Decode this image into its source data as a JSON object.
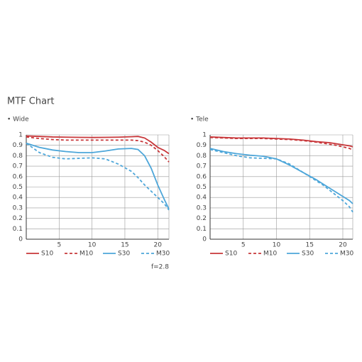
{
  "title": "MTF Chart",
  "chart_data": [
    {
      "type": "line",
      "subtitle": "• Wide",
      "x": [
        0,
        2,
        4,
        6,
        8,
        10,
        12,
        14,
        16,
        17,
        18,
        19,
        20,
        21,
        21.7
      ],
      "series": [
        {
          "name": "S10",
          "color": "#c8373a",
          "dash": false,
          "values": [
            0.99,
            0.985,
            0.98,
            0.978,
            0.976,
            0.975,
            0.976,
            0.978,
            0.982,
            0.985,
            0.97,
            0.93,
            0.88,
            0.85,
            0.82
          ]
        },
        {
          "name": "M10",
          "color": "#c8373a",
          "dash": true,
          "values": [
            0.98,
            0.965,
            0.955,
            0.95,
            0.95,
            0.95,
            0.95,
            0.95,
            0.95,
            0.945,
            0.93,
            0.9,
            0.85,
            0.79,
            0.74
          ]
        },
        {
          "name": "S30",
          "color": "#4da6d9",
          "dash": false,
          "values": [
            0.92,
            0.88,
            0.855,
            0.84,
            0.83,
            0.83,
            0.845,
            0.865,
            0.87,
            0.86,
            0.8,
            0.68,
            0.52,
            0.38,
            0.29
          ]
        },
        {
          "name": "M30",
          "color": "#4da6d9",
          "dash": true,
          "values": [
            0.92,
            0.83,
            0.785,
            0.77,
            0.775,
            0.78,
            0.77,
            0.72,
            0.65,
            0.59,
            0.52,
            0.46,
            0.4,
            0.34,
            0.28
          ]
        }
      ],
      "xlim": [
        0,
        21.7
      ],
      "xticks": [
        5,
        10,
        15,
        20
      ],
      "ylim": [
        0,
        1
      ],
      "yticks": [
        0,
        0.1,
        0.2,
        0.3,
        0.4,
        0.5,
        0.6,
        0.7,
        0.8,
        0.9,
        1
      ],
      "grid": true,
      "annotation": "f=2.8"
    },
    {
      "type": "line",
      "subtitle": "• Tele",
      "x": [
        0,
        2,
        4,
        6,
        8,
        10,
        12,
        14,
        16,
        17,
        18,
        19,
        20,
        21,
        21.5
      ],
      "series": [
        {
          "name": "S10",
          "color": "#c8373a",
          "dash": false,
          "values": [
            0.98,
            0.975,
            0.97,
            0.97,
            0.97,
            0.965,
            0.96,
            0.95,
            0.935,
            0.93,
            0.925,
            0.915,
            0.905,
            0.895,
            0.885
          ]
        },
        {
          "name": "M10",
          "color": "#c8373a",
          "dash": true,
          "values": [
            0.975,
            0.97,
            0.965,
            0.965,
            0.965,
            0.96,
            0.955,
            0.945,
            0.93,
            0.92,
            0.91,
            0.9,
            0.885,
            0.87,
            0.855
          ]
        },
        {
          "name": "S30",
          "color": "#4da6d9",
          "dash": false,
          "values": [
            0.87,
            0.84,
            0.82,
            0.805,
            0.795,
            0.77,
            0.71,
            0.64,
            0.57,
            0.53,
            0.49,
            0.45,
            0.41,
            0.37,
            0.34
          ]
        },
        {
          "name": "M30",
          "color": "#4da6d9",
          "dash": true,
          "values": [
            0.86,
            0.83,
            0.8,
            0.78,
            0.775,
            0.77,
            0.72,
            0.64,
            0.56,
            0.52,
            0.47,
            0.42,
            0.37,
            0.31,
            0.26
          ]
        }
      ],
      "xlim": [
        0,
        21.5
      ],
      "xticks": [
        5,
        10,
        15,
        20
      ],
      "ylim": [
        0,
        1
      ],
      "yticks": [
        0,
        0.1,
        0.2,
        0.3,
        0.4,
        0.5,
        0.6,
        0.7,
        0.8,
        0.9,
        1
      ],
      "grid": true
    }
  ]
}
